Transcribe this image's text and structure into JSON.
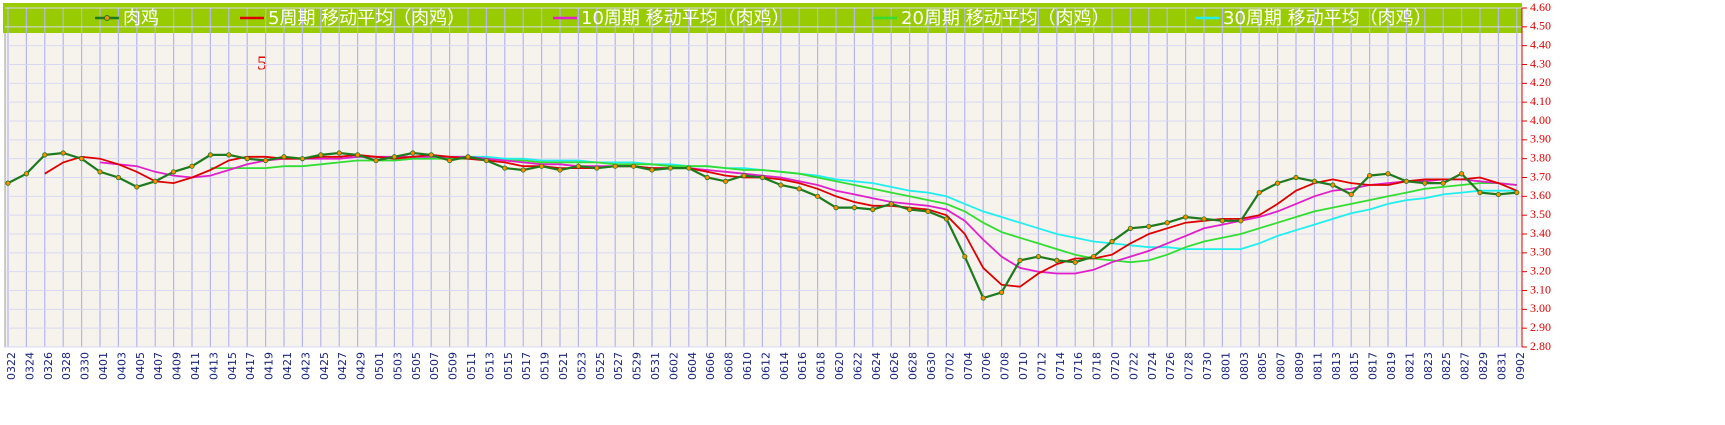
{
  "chart_data": {
    "type": "line",
    "legend": "top",
    "grid": true,
    "annotation": "5",
    "categories": [
      "0322",
      "0324",
      "0326",
      "0328",
      "0330",
      "0401",
      "0403",
      "0405",
      "0407",
      "0409",
      "0411",
      "0413",
      "0415",
      "0417",
      "0419",
      "0421",
      "0423",
      "0425",
      "0427",
      "0429",
      "0501",
      "0503",
      "0505",
      "0507",
      "0509",
      "0511",
      "0513",
      "0515",
      "0517",
      "0519",
      "0521",
      "0523",
      "0525",
      "0527",
      "0529",
      "0531",
      "0602",
      "0604",
      "0606",
      "0608",
      "0610",
      "0612",
      "0614",
      "0616",
      "0618",
      "0620",
      "0622",
      "0624",
      "0626",
      "0628",
      "0630",
      "0702",
      "0704",
      "0706",
      "0708",
      "0710",
      "0712",
      "0714",
      "0716",
      "0718",
      "0720",
      "0722",
      "0724",
      "0726",
      "0728",
      "0730",
      "0801",
      "0803",
      "0805",
      "0807",
      "0809",
      "0811",
      "0813",
      "0815",
      "0817",
      "0819",
      "0821",
      "0823",
      "0825",
      "0827",
      "0829",
      "0831",
      "0902"
    ],
    "ylim": [
      2.8,
      4.6
    ],
    "yticks": [
      {
        "value": 2.8,
        "label": "2.80"
      },
      {
        "value": 2.9,
        "label": "2.90"
      },
      {
        "value": 3.0,
        "label": "3.00"
      },
      {
        "value": 3.1,
        "label": "3.10"
      },
      {
        "value": 3.2,
        "label": "3.20"
      },
      {
        "value": 3.3,
        "label": "3.30"
      },
      {
        "value": 3.4,
        "label": "3.40"
      },
      {
        "value": 3.5,
        "label": "3.50"
      },
      {
        "value": 3.6,
        "label": "3.60"
      },
      {
        "value": 3.7,
        "label": "3.70"
      },
      {
        "value": 3.8,
        "label": "3.80"
      },
      {
        "value": 3.9,
        "label": "3.90"
      },
      {
        "value": 4.0,
        "label": "4.00"
      },
      {
        "value": 4.1,
        "label": "4.10"
      },
      {
        "value": 4.2,
        "label": "4.20"
      },
      {
        "value": 4.3,
        "label": "4.30"
      },
      {
        "value": 4.4,
        "label": "4.40"
      },
      {
        "value": 4.5,
        "label": "4.50"
      },
      {
        "value": 4.6,
        "label": "4.60"
      }
    ],
    "series": [
      {
        "name": "肉鸡",
        "color": "#1f7a1f",
        "marker_color": "#ff8c00",
        "values": [
          3.67,
          3.72,
          3.82,
          3.83,
          3.8,
          3.73,
          3.7,
          3.65,
          3.68,
          3.73,
          3.76,
          3.82,
          3.82,
          3.8,
          3.79,
          3.81,
          3.8,
          3.82,
          3.83,
          3.82,
          3.79,
          3.81,
          3.83,
          3.82,
          3.79,
          3.81,
          3.79,
          3.75,
          3.74,
          3.76,
          3.74,
          3.76,
          3.75,
          3.76,
          3.76,
          3.74,
          3.75,
          3.75,
          3.7,
          3.68,
          3.71,
          3.7,
          3.66,
          3.64,
          3.6,
          3.54,
          3.54,
          3.53,
          3.56,
          3.53,
          3.52,
          3.48,
          3.28,
          3.06,
          3.09,
          3.26,
          3.28,
          3.26,
          3.25,
          3.28,
          3.36,
          3.43,
          3.44,
          3.46,
          3.49,
          3.48,
          3.47,
          3.47,
          3.62,
          3.67,
          3.7,
          3.68,
          3.66,
          3.61,
          3.71,
          3.72,
          3.68,
          3.67,
          3.67,
          3.72,
          3.62,
          3.61,
          3.62
        ]
      },
      {
        "name": "5周期 移动平均（肉鸡）",
        "color": "#dd0000",
        "values": [
          null,
          null,
          3.72,
          3.78,
          3.81,
          3.8,
          3.77,
          3.73,
          3.68,
          3.67,
          3.7,
          3.74,
          3.79,
          3.81,
          3.81,
          3.8,
          3.8,
          3.81,
          3.81,
          3.82,
          3.81,
          3.8,
          3.81,
          3.82,
          3.81,
          3.8,
          3.79,
          3.78,
          3.76,
          3.76,
          3.75,
          3.75,
          3.75,
          3.76,
          3.76,
          3.75,
          3.75,
          3.75,
          3.73,
          3.71,
          3.7,
          3.7,
          3.69,
          3.67,
          3.64,
          3.6,
          3.57,
          3.55,
          3.55,
          3.54,
          3.53,
          3.5,
          3.4,
          3.22,
          3.13,
          3.12,
          3.19,
          3.24,
          3.27,
          3.27,
          3.29,
          3.35,
          3.4,
          3.43,
          3.46,
          3.47,
          3.48,
          3.48,
          3.5,
          3.56,
          3.63,
          3.67,
          3.69,
          3.67,
          3.66,
          3.66,
          3.68,
          3.69,
          3.69,
          3.69,
          3.7,
          3.67,
          3.63
        ]
      },
      {
        "name": "10周期 移动平均（肉鸡）",
        "color": "#e020c8",
        "values": [
          null,
          null,
          null,
          null,
          null,
          3.78,
          3.77,
          3.76,
          3.73,
          3.71,
          3.7,
          3.71,
          3.74,
          3.77,
          3.79,
          3.8,
          3.8,
          3.8,
          3.8,
          3.81,
          3.81,
          3.81,
          3.81,
          3.81,
          3.81,
          3.81,
          3.8,
          3.79,
          3.78,
          3.77,
          3.77,
          3.76,
          3.76,
          3.76,
          3.76,
          3.75,
          3.75,
          3.75,
          3.74,
          3.73,
          3.72,
          3.71,
          3.7,
          3.68,
          3.66,
          3.63,
          3.61,
          3.59,
          3.57,
          3.56,
          3.55,
          3.53,
          3.47,
          3.37,
          3.28,
          3.22,
          3.2,
          3.19,
          3.19,
          3.21,
          3.25,
          3.28,
          3.31,
          3.35,
          3.39,
          3.43,
          3.45,
          3.47,
          3.49,
          3.52,
          3.56,
          3.6,
          3.63,
          3.64,
          3.66,
          3.67,
          3.68,
          3.68,
          3.69,
          3.69,
          3.68,
          3.67,
          3.66
        ]
      },
      {
        "name": "20周期 移动平均（肉鸡）",
        "color": "#33dd33",
        "values": [
          null,
          null,
          null,
          null,
          null,
          null,
          null,
          null,
          null,
          null,
          null,
          3.75,
          3.75,
          3.75,
          3.75,
          3.76,
          3.76,
          3.77,
          3.78,
          3.79,
          3.79,
          3.79,
          3.8,
          3.8,
          3.8,
          3.8,
          3.8,
          3.79,
          3.79,
          3.78,
          3.78,
          3.78,
          3.78,
          3.77,
          3.77,
          3.77,
          3.76,
          3.76,
          3.76,
          3.75,
          3.74,
          3.74,
          3.73,
          3.72,
          3.7,
          3.68,
          3.66,
          3.64,
          3.62,
          3.6,
          3.58,
          3.56,
          3.52,
          3.46,
          3.41,
          3.38,
          3.35,
          3.32,
          3.29,
          3.27,
          3.26,
          3.25,
          3.26,
          3.29,
          3.33,
          3.36,
          3.38,
          3.4,
          3.43,
          3.46,
          3.49,
          3.52,
          3.54,
          3.56,
          3.58,
          3.6,
          3.62,
          3.64,
          3.65,
          3.66,
          3.67,
          3.67,
          3.66
        ]
      },
      {
        "name": "30周期 移动平均（肉鸡）",
        "color": "#22eeee",
        "values": [
          null,
          null,
          null,
          null,
          null,
          null,
          null,
          null,
          null,
          null,
          null,
          null,
          null,
          null,
          null,
          null,
          null,
          null,
          null,
          null,
          null,
          3.79,
          3.8,
          3.8,
          3.81,
          3.81,
          3.81,
          3.8,
          3.8,
          3.79,
          3.79,
          3.79,
          3.78,
          3.78,
          3.78,
          3.77,
          3.77,
          3.76,
          3.76,
          3.75,
          3.75,
          3.74,
          3.73,
          3.72,
          3.71,
          3.69,
          3.68,
          3.67,
          3.65,
          3.63,
          3.62,
          3.6,
          3.56,
          3.52,
          3.49,
          3.46,
          3.43,
          3.4,
          3.38,
          3.36,
          3.35,
          3.34,
          3.33,
          3.33,
          3.32,
          3.32,
          3.32,
          3.32,
          3.35,
          3.39,
          3.42,
          3.45,
          3.48,
          3.51,
          3.53,
          3.56,
          3.58,
          3.59,
          3.61,
          3.62,
          3.63,
          3.63,
          3.63
        ]
      }
    ]
  }
}
